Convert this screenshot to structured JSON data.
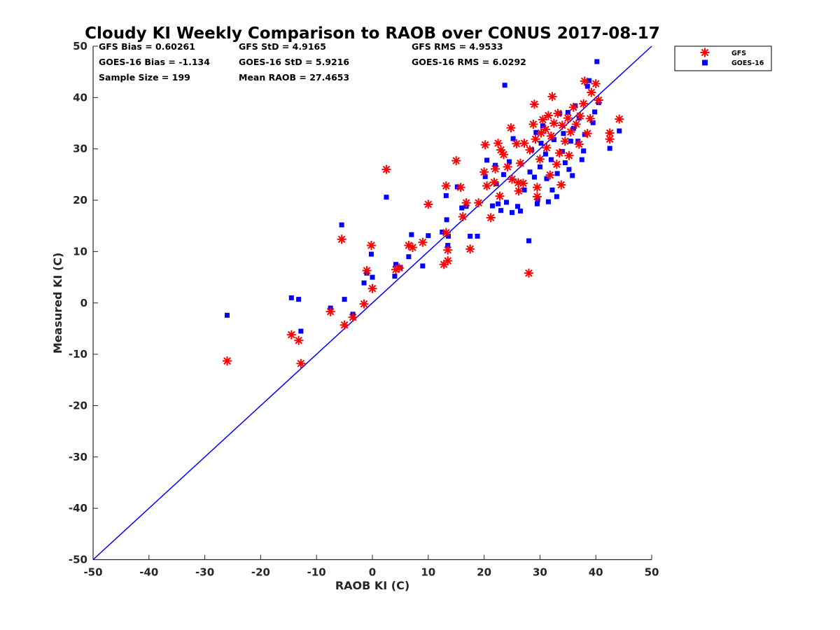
{
  "chart_data": {
    "type": "scatter",
    "title": "Cloudy KI Weekly Comparison to RAOB over CONUS 2017-08-17",
    "xlabel": "RAOB KI (C)",
    "ylabel": "Measured KI (C)",
    "xlim": [
      -50,
      50
    ],
    "ylim": [
      -50,
      50
    ],
    "xticks": [
      -50,
      -40,
      -30,
      -20,
      -10,
      0,
      10,
      20,
      30,
      40,
      50
    ],
    "yticks": [
      -50,
      -40,
      -30,
      -20,
      -10,
      0,
      10,
      20,
      30,
      40,
      50
    ],
    "grid": false,
    "legend_position": "top-right outside",
    "reference_line": {
      "name": "1:1 line",
      "color": "#0000ff",
      "from": [
        -50,
        -50
      ],
      "to": [
        50,
        50
      ]
    },
    "stats": [
      {
        "label": "GFS Bias = 0.60261"
      },
      {
        "label": "GFS StD = 4.9165"
      },
      {
        "label": "GFS RMS = 4.9533"
      },
      {
        "label": "GOES-16 Bias = -1.134"
      },
      {
        "label": "GOES-16 StD = 5.9216"
      },
      {
        "label": "GOES-16 RMS = 6.0292"
      },
      {
        "label": "Sample Size = 199"
      },
      {
        "label": "Mean RAOB = 27.4653"
      }
    ],
    "series": [
      {
        "name": "GFS",
        "marker": "asterisk",
        "color": "#ff0000",
        "points": [
          [
            -26,
            -11.3
          ],
          [
            -14.5,
            -6.2
          ],
          [
            -13.2,
            -7.3
          ],
          [
            -12.8,
            -11.8
          ],
          [
            -7.5,
            -1.7
          ],
          [
            -5.5,
            12.4
          ],
          [
            -5,
            -4.3
          ],
          [
            -3.5,
            -2.8
          ],
          [
            -1.5,
            -0.2
          ],
          [
            -1,
            6.3
          ],
          [
            -0.2,
            11.2
          ],
          [
            0,
            2.8
          ],
          [
            2.5,
            26
          ],
          [
            4.2,
            6.5
          ],
          [
            4.8,
            6.8
          ],
          [
            6.5,
            11.2
          ],
          [
            7.2,
            10.8
          ],
          [
            9,
            11.8
          ],
          [
            10,
            19.2
          ],
          [
            12.8,
            7.5
          ],
          [
            13.2,
            22.8
          ],
          [
            13.5,
            8.2
          ],
          [
            13.5,
            10.3
          ],
          [
            13.2,
            13.7
          ],
          [
            15,
            27.7
          ],
          [
            15.8,
            22.5
          ],
          [
            16.2,
            16.8
          ],
          [
            16.8,
            19.5
          ],
          [
            17.5,
            10.5
          ],
          [
            19,
            19.5
          ],
          [
            20,
            25.5
          ],
          [
            20.2,
            30.8
          ],
          [
            20.5,
            22.8
          ],
          [
            21.2,
            16.6
          ],
          [
            21.8,
            23.5
          ],
          [
            22,
            26.1
          ],
          [
            22.5,
            31.1
          ],
          [
            22.8,
            20.8
          ],
          [
            23,
            29.8
          ],
          [
            23.5,
            28.9
          ],
          [
            24.2,
            26.5
          ],
          [
            24.8,
            34.1
          ],
          [
            25,
            24.1
          ],
          [
            25.8,
            31.0
          ],
          [
            26.1,
            23.4
          ],
          [
            26.2,
            21.8
          ],
          [
            26.5,
            27.2
          ],
          [
            27,
            23.3
          ],
          [
            27.2,
            31.1
          ],
          [
            28,
            5.8
          ],
          [
            28.2,
            29.8
          ],
          [
            28.8,
            34.8
          ],
          [
            29,
            38.7
          ],
          [
            29.2,
            31.9
          ],
          [
            29.5,
            22.5
          ],
          [
            29.5,
            20.7
          ],
          [
            30,
            28.0
          ],
          [
            30.2,
            33.1
          ],
          [
            30.5,
            35.7
          ],
          [
            31,
            33.8
          ],
          [
            31.2,
            30.2
          ],
          [
            31.5,
            36.5
          ],
          [
            31.8,
            24.9
          ],
          [
            32,
            32.5
          ],
          [
            32.2,
            40.2
          ],
          [
            32.5,
            35.0
          ],
          [
            33,
            27.0
          ],
          [
            33.2,
            36.9
          ],
          [
            33.5,
            29.2
          ],
          [
            33.8,
            23.0
          ],
          [
            34,
            34.6
          ],
          [
            34.5,
            31.5
          ],
          [
            35,
            36.0
          ],
          [
            35.2,
            28.7
          ],
          [
            35.5,
            33.3
          ],
          [
            36,
            38.1
          ],
          [
            36.5,
            34.8
          ],
          [
            37,
            30.9
          ],
          [
            37.2,
            36.4
          ],
          [
            37.8,
            38.8
          ],
          [
            38,
            43.2
          ],
          [
            38.5,
            33.0
          ],
          [
            39,
            35.9
          ],
          [
            39.2,
            41.0
          ],
          [
            40,
            42.7
          ],
          [
            40.5,
            39.5
          ],
          [
            42.5,
            31.9
          ],
          [
            42.5,
            33.1
          ],
          [
            44.2,
            35.8
          ]
        ]
      },
      {
        "name": "GOES-16",
        "marker": "square",
        "color": "#0000ff",
        "points": [
          [
            -26,
            -2.4
          ],
          [
            -14.5,
            1.0
          ],
          [
            -13.2,
            0.7
          ],
          [
            -12.8,
            -5.5
          ],
          [
            -7.5,
            -1.0
          ],
          [
            -5.5,
            15.2
          ],
          [
            -5,
            0.7
          ],
          [
            -3.5,
            -2.2
          ],
          [
            -1.5,
            3.9
          ],
          [
            -1,
            5.8
          ],
          [
            -0.2,
            9.5
          ],
          [
            0,
            5.0
          ],
          [
            2.5,
            20.6
          ],
          [
            4,
            5.2
          ],
          [
            4.2,
            7.5
          ],
          [
            5,
            6.9
          ],
          [
            6.5,
            9.0
          ],
          [
            7,
            13.3
          ],
          [
            9,
            7.2
          ],
          [
            10,
            13.1
          ],
          [
            12.5,
            13.8
          ],
          [
            13.2,
            20.9
          ],
          [
            13.3,
            16.2
          ],
          [
            13.5,
            11.2
          ],
          [
            13.6,
            13.0
          ],
          [
            15.2,
            22.6
          ],
          [
            16,
            18.5
          ],
          [
            16.8,
            18.8
          ],
          [
            17.5,
            13.0
          ],
          [
            18.8,
            13.0
          ],
          [
            20.2,
            24.6
          ],
          [
            20.5,
            27.8
          ],
          [
            21.5,
            18.9
          ],
          [
            22,
            26.8
          ],
          [
            22.2,
            23.2
          ],
          [
            22.5,
            19.3
          ],
          [
            23,
            18.0
          ],
          [
            23.5,
            25.0
          ],
          [
            23.7,
            42.4
          ],
          [
            24,
            19.6
          ],
          [
            24.5,
            27.5
          ],
          [
            25,
            17.6
          ],
          [
            25.2,
            32.0
          ],
          [
            26,
            18.8
          ],
          [
            26.5,
            17.9
          ],
          [
            27.2,
            22.0
          ],
          [
            28,
            12.1
          ],
          [
            28.2,
            25.5
          ],
          [
            28.5,
            29.8
          ],
          [
            29,
            24.5
          ],
          [
            29.3,
            33.2
          ],
          [
            29.5,
            19.3
          ],
          [
            29.6,
            20.1
          ],
          [
            30,
            26.5
          ],
          [
            30.2,
            31.1
          ],
          [
            30.5,
            34.5
          ],
          [
            31,
            29.0
          ],
          [
            31.2,
            24.2
          ],
          [
            31.5,
            19.7
          ],
          [
            32,
            27.9
          ],
          [
            32.2,
            22.0
          ],
          [
            32.5,
            31.8
          ],
          [
            33,
            20.7
          ],
          [
            33.1,
            25.2
          ],
          [
            33.5,
            36.9
          ],
          [
            34,
            29.5
          ],
          [
            34.2,
            33.0
          ],
          [
            34.5,
            27.3
          ],
          [
            35,
            37.1
          ],
          [
            35.2,
            26.0
          ],
          [
            35.5,
            31.5
          ],
          [
            35.8,
            24.8
          ],
          [
            36,
            34.0
          ],
          [
            36.3,
            38.4
          ],
          [
            36.8,
            31.5
          ],
          [
            37,
            36.0
          ],
          [
            37.5,
            27.9
          ],
          [
            37.8,
            29.6
          ],
          [
            38,
            32.8
          ],
          [
            38.5,
            42.2
          ],
          [
            38.8,
            43.3
          ],
          [
            39.5,
            35.1
          ],
          [
            39.8,
            37.2
          ],
          [
            40.2,
            47.0
          ],
          [
            40.5,
            39.0
          ],
          [
            42.5,
            30.1
          ],
          [
            44.2,
            33.5
          ]
        ]
      }
    ]
  }
}
